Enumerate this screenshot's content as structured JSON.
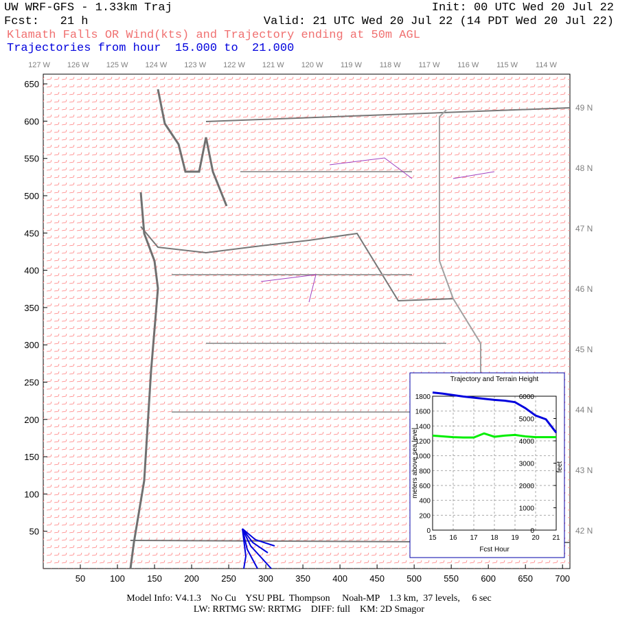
{
  "header": {
    "title": "UW WRF-GFS - 1.33km Traj",
    "init": "Init: 00 UTC Wed 20 Jul 22",
    "forecast": "Fcst:   21 h",
    "valid": "Valid: 21 UTC Wed 20 Jul 22 (14 PDT Wed 20 Jul 22)",
    "subtitle": "Klamath Falls OR Wind(kts) and Trajectory ending at 50m AGL",
    "trajectory_hours": "Trajectories from hour  15.000 to  21.000"
  },
  "map": {
    "xlim": [
      0,
      710
    ],
    "ylim": [
      0,
      663
    ],
    "xticks": [
      50,
      100,
      150,
      200,
      250,
      300,
      350,
      400,
      450,
      500,
      550,
      600,
      650,
      700
    ],
    "yticks": [
      50,
      100,
      150,
      200,
      250,
      300,
      350,
      400,
      450,
      500,
      550,
      600,
      650
    ],
    "longitude_labels": [
      "127 W",
      "126 W",
      "125 W",
      "124 W",
      "123 W",
      "122 W",
      "121 W",
      "120 W",
      "119 W",
      "118 W",
      "117 W",
      "116 W",
      "115 W",
      "114 W"
    ],
    "latitude_labels": [
      "49 N",
      "48 N",
      "47 N",
      "46 N",
      "45 N",
      "44 N",
      "43 N",
      "42 N"
    ]
  },
  "chart_data": {
    "type": "line",
    "title": "Trajectory and Terrain Height",
    "x_label": "Fcst Hour",
    "y_label": "meters above sea level",
    "y2_label": "feet",
    "x": [
      15,
      15.5,
      16,
      16.5,
      17,
      17.5,
      18,
      18.5,
      19,
      19.5,
      20,
      20.5,
      21
    ],
    "xlim": [
      15,
      21
    ],
    "xticks": [
      15,
      16,
      17,
      18,
      19,
      20,
      21
    ],
    "ylim": [
      0,
      1800
    ],
    "yticks": [
      0,
      200,
      400,
      600,
      800,
      1000,
      1200,
      1400,
      1600,
      1800
    ],
    "y2lim": [
      0,
      6000
    ],
    "y2ticks": [
      0,
      1000,
      2000,
      3000,
      4000,
      5000,
      6000
    ],
    "grid": true,
    "series": [
      {
        "name": "Trajectory",
        "color": "#0000dd",
        "values": [
          1850,
          1835,
          1815,
          1795,
          1780,
          1765,
          1750,
          1740,
          1720,
          1640,
          1540,
          1490,
          1310
        ]
      },
      {
        "name": "Terrain",
        "color": "#00ee00",
        "values": [
          1270,
          1260,
          1250,
          1245,
          1245,
          1300,
          1255,
          1270,
          1280,
          1260,
          1250,
          1250,
          1250
        ]
      }
    ]
  },
  "footer": {
    "line1": "Model Info: V4.1.3    No Cu    YSU PBL  Thompson     Noah-MP    1.3 km,  37 levels,     6 sec",
    "line2": "LW: RRTMG SW: RRTMG    DIFF: full    KM: 2D Smagor"
  }
}
